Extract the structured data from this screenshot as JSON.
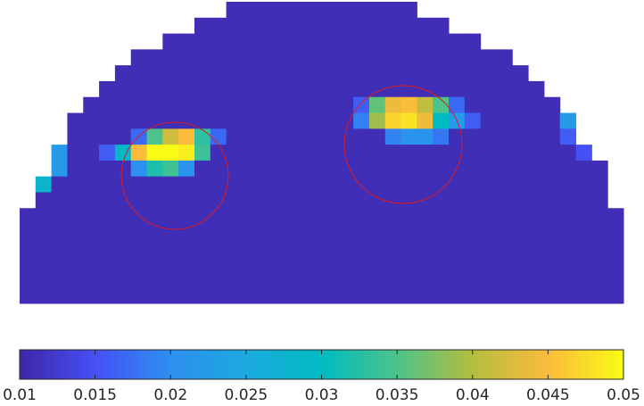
{
  "chart_data": {
    "type": "heatmap",
    "colormap": "parula",
    "clim": [
      0.01,
      0.05
    ],
    "cticks": [
      0.01,
      0.015,
      0.02,
      0.025,
      0.03,
      0.035,
      0.04,
      0.045,
      0.05
    ],
    "values": [
      [
        null,
        null,
        null,
        null,
        null,
        null,
        null,
        null,
        null,
        null,
        null,
        null,
        null,
        0.011,
        0.011,
        0.011,
        0.011,
        0.011,
        0.011,
        0.011,
        0.011,
        0.011,
        0.011,
        0.011,
        0.011,
        null,
        null,
        null,
        null,
        null,
        null,
        null,
        null,
        null,
        null,
        null,
        null,
        null
      ],
      [
        null,
        null,
        null,
        null,
        null,
        null,
        null,
        null,
        null,
        null,
        null,
        0.011,
        0.011,
        0.011,
        0.011,
        0.011,
        0.011,
        0.011,
        0.011,
        0.011,
        0.011,
        0.011,
        0.011,
        0.011,
        0.011,
        0.011,
        0.011,
        null,
        null,
        null,
        null,
        null,
        null,
        null,
        null,
        null,
        null,
        null
      ],
      [
        null,
        null,
        null,
        null,
        null,
        null,
        null,
        null,
        null,
        0.011,
        0.011,
        0.011,
        0.011,
        0.011,
        0.011,
        0.011,
        0.011,
        0.011,
        0.011,
        0.011,
        0.011,
        0.011,
        0.011,
        0.011,
        0.011,
        0.011,
        0.011,
        0.011,
        0.011,
        null,
        null,
        null,
        null,
        null,
        null,
        null,
        null,
        null
      ],
      [
        null,
        null,
        null,
        null,
        null,
        null,
        null,
        0.011,
        0.011,
        0.011,
        0.011,
        0.011,
        0.011,
        0.011,
        0.011,
        0.011,
        0.011,
        0.011,
        0.011,
        0.011,
        0.011,
        0.011,
        0.011,
        0.011,
        0.011,
        0.011,
        0.011,
        0.011,
        0.011,
        0.011,
        0.011,
        null,
        null,
        null,
        null,
        null,
        null,
        null
      ],
      [
        null,
        null,
        null,
        null,
        null,
        null,
        0.011,
        0.011,
        0.011,
        0.011,
        0.011,
        0.011,
        0.011,
        0.011,
        0.011,
        0.011,
        0.011,
        0.011,
        0.011,
        0.011,
        0.011,
        0.011,
        0.011,
        0.011,
        0.011,
        0.011,
        0.011,
        0.011,
        0.011,
        0.011,
        0.011,
        0.011,
        null,
        null,
        null,
        null,
        null,
        null
      ],
      [
        null,
        null,
        null,
        null,
        null,
        0.011,
        0.011,
        0.011,
        0.011,
        0.011,
        0.011,
        0.011,
        0.011,
        0.011,
        0.011,
        0.011,
        0.011,
        0.011,
        0.011,
        0.011,
        0.011,
        0.011,
        0.011,
        0.011,
        0.011,
        0.011,
        0.011,
        0.011,
        0.011,
        0.011,
        0.011,
        0.011,
        0.011,
        null,
        null,
        null,
        null,
        null
      ],
      [
        null,
        null,
        null,
        null,
        0.011,
        0.011,
        0.011,
        0.011,
        0.011,
        0.011,
        0.011,
        0.011,
        0.011,
        0.011,
        0.011,
        0.011,
        0.011,
        0.011,
        0.011,
        0.011,
        0.011,
        0.016,
        0.036,
        0.044,
        0.045,
        0.041,
        0.035,
        0.017,
        0.011,
        0.011,
        0.011,
        0.011,
        0.011,
        0.011,
        null,
        null,
        null,
        null
      ],
      [
        null,
        null,
        null,
        0.011,
        0.011,
        0.011,
        0.011,
        0.011,
        0.011,
        0.011,
        0.011,
        0.011,
        0.011,
        0.011,
        0.011,
        0.011,
        0.011,
        0.011,
        0.011,
        0.011,
        0.011,
        0.019,
        0.039,
        0.047,
        0.048,
        0.044,
        0.03,
        0.022,
        0.016,
        0.011,
        0.011,
        0.011,
        0.011,
        0.011,
        0.022,
        null,
        null,
        null
      ],
      [
        null,
        null,
        null,
        0.011,
        0.011,
        0.011,
        0.011,
        0.017,
        0.035,
        0.042,
        0.045,
        0.033,
        0.017,
        0.011,
        0.011,
        0.011,
        0.011,
        0.011,
        0.011,
        0.011,
        0.011,
        0.011,
        0.011,
        0.019,
        0.021,
        0.021,
        0.018,
        0.011,
        0.011,
        0.011,
        0.011,
        0.011,
        0.011,
        0.011,
        0.016,
        null,
        null,
        null
      ],
      [
        null,
        null,
        0.022,
        0.011,
        0.011,
        0.016,
        0.029,
        0.045,
        0.05,
        0.05,
        0.049,
        0.034,
        0.011,
        0.011,
        0.011,
        0.011,
        0.011,
        0.011,
        0.011,
        0.011,
        0.011,
        0.011,
        0.011,
        0.011,
        0.011,
        0.011,
        0.011,
        0.011,
        0.011,
        0.011,
        0.011,
        0.011,
        0.011,
        0.011,
        0.011,
        0.015,
        null,
        null
      ],
      [
        null,
        null,
        0.022,
        0.011,
        0.011,
        0.011,
        0.011,
        0.02,
        0.032,
        0.034,
        0.021,
        0.011,
        0.011,
        0.011,
        0.011,
        0.011,
        0.011,
        0.011,
        0.011,
        0.011,
        0.011,
        0.011,
        0.011,
        0.011,
        0.011,
        0.011,
        0.011,
        0.011,
        0.011,
        0.011,
        0.011,
        0.011,
        0.011,
        0.011,
        0.011,
        0.011,
        0.011,
        null
      ],
      [
        null,
        0.028,
        0.011,
        0.011,
        0.011,
        0.011,
        0.011,
        0.011,
        0.011,
        0.011,
        0.011,
        0.011,
        0.011,
        0.011,
        0.011,
        0.011,
        0.011,
        0.011,
        0.011,
        0.011,
        0.011,
        0.011,
        0.011,
        0.011,
        0.011,
        0.011,
        0.011,
        0.011,
        0.011,
        0.011,
        0.011,
        0.011,
        0.011,
        0.011,
        0.011,
        0.011,
        0.011,
        null
      ],
      [
        null,
        0.011,
        0.011,
        0.011,
        0.011,
        0.011,
        0.011,
        0.011,
        0.011,
        0.011,
        0.011,
        0.011,
        0.011,
        0.011,
        0.011,
        0.011,
        0.011,
        0.011,
        0.011,
        0.011,
        0.011,
        0.011,
        0.011,
        0.011,
        0.011,
        0.011,
        0.011,
        0.011,
        0.011,
        0.011,
        0.011,
        0.011,
        0.011,
        0.011,
        0.011,
        0.011,
        0.011,
        null
      ],
      [
        0.011,
        0.011,
        0.011,
        0.011,
        0.011,
        0.011,
        0.011,
        0.011,
        0.011,
        0.011,
        0.011,
        0.011,
        0.011,
        0.011,
        0.011,
        0.011,
        0.011,
        0.011,
        0.011,
        0.011,
        0.011,
        0.011,
        0.011,
        0.011,
        0.011,
        0.011,
        0.011,
        0.011,
        0.011,
        0.011,
        0.011,
        0.011,
        0.011,
        0.011,
        0.011,
        0.011,
        0.011,
        0.011
      ],
      [
        0.011,
        0.011,
        0.011,
        0.011,
        0.011,
        0.011,
        0.011,
        0.011,
        0.011,
        0.011,
        0.011,
        0.011,
        0.011,
        0.011,
        0.011,
        0.011,
        0.011,
        0.011,
        0.011,
        0.011,
        0.011,
        0.011,
        0.011,
        0.011,
        0.011,
        0.011,
        0.011,
        0.011,
        0.011,
        0.011,
        0.011,
        0.011,
        0.011,
        0.011,
        0.011,
        0.011,
        0.011,
        0.011
      ],
      [
        0.011,
        0.011,
        0.011,
        0.011,
        0.011,
        0.011,
        0.011,
        0.011,
        0.011,
        0.011,
        0.011,
        0.011,
        0.011,
        0.011,
        0.011,
        0.011,
        0.011,
        0.011,
        0.011,
        0.011,
        0.011,
        0.011,
        0.011,
        0.011,
        0.011,
        0.011,
        0.011,
        0.011,
        0.011,
        0.011,
        0.011,
        0.011,
        0.011,
        0.011,
        0.011,
        0.011,
        0.011,
        0.011
      ],
      [
        0.011,
        0.011,
        0.011,
        0.011,
        0.011,
        0.011,
        0.011,
        0.011,
        0.011,
        0.011,
        0.011,
        0.011,
        0.011,
        0.011,
        0.011,
        0.011,
        0.011,
        0.011,
        0.011,
        0.011,
        0.011,
        0.011,
        0.011,
        0.011,
        0.011,
        0.011,
        0.011,
        0.011,
        0.011,
        0.011,
        0.011,
        0.011,
        0.011,
        0.011,
        0.011,
        0.011,
        0.011,
        0.011
      ],
      [
        0.011,
        0.011,
        0.011,
        0.011,
        0.011,
        0.011,
        0.011,
        0.011,
        0.011,
        0.011,
        0.011,
        0.011,
        0.011,
        0.011,
        0.011,
        0.011,
        0.011,
        0.011,
        0.011,
        0.011,
        0.011,
        0.011,
        0.011,
        0.011,
        0.011,
        0.011,
        0.011,
        0.011,
        0.011,
        0.011,
        0.011,
        0.011,
        0.011,
        0.011,
        0.011,
        0.011,
        0.011,
        0.011
      ],
      [
        0.011,
        0.011,
        0.011,
        0.011,
        0.011,
        0.011,
        0.011,
        0.011,
        0.011,
        0.011,
        0.011,
        0.011,
        0.011,
        0.011,
        0.011,
        0.011,
        0.011,
        0.011,
        0.011,
        0.011,
        0.011,
        0.011,
        0.011,
        0.011,
        0.011,
        0.011,
        0.011,
        0.011,
        0.011,
        0.011,
        0.011,
        0.011,
        0.011,
        0.011,
        0.011,
        0.011,
        0.011,
        0.011
      ]
    ]
  }
}
